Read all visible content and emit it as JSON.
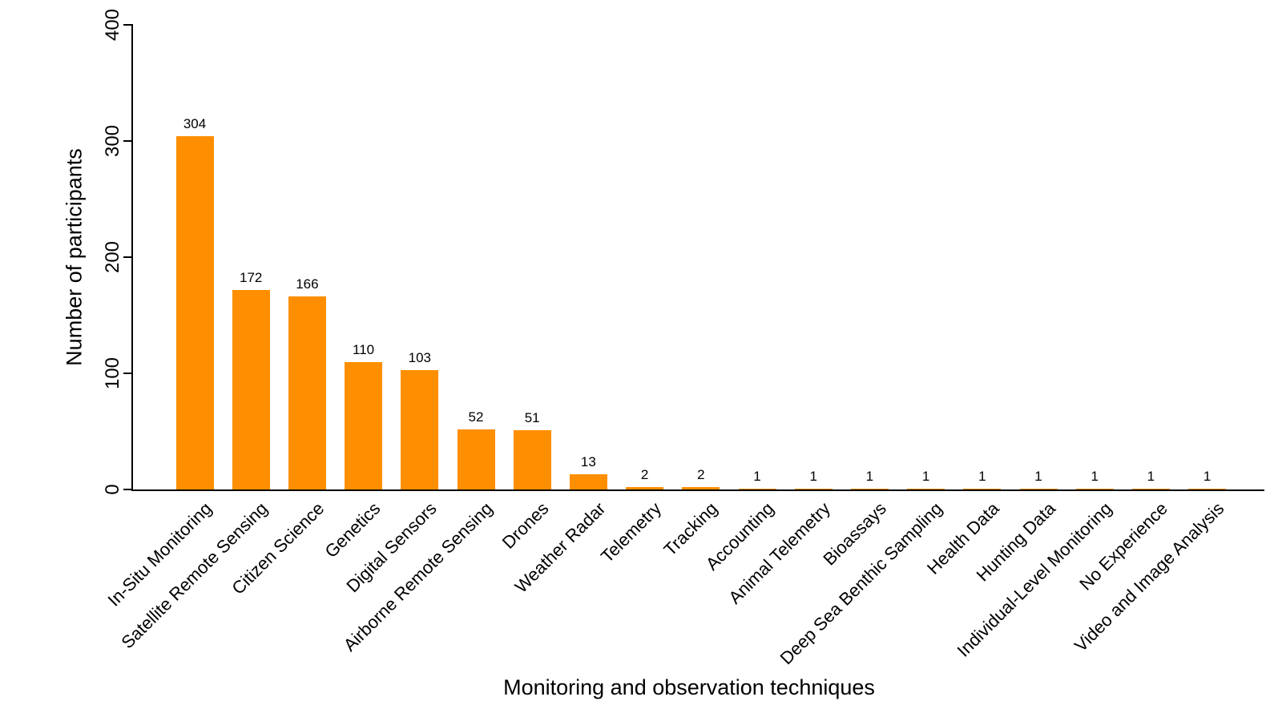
{
  "chart_data": {
    "type": "bar",
    "title": "",
    "xlabel": "Monitoring and observation techniques",
    "ylabel": "Number of participants",
    "categories": [
      "In-Situ Monitoring",
      "Satellite Remote Sensing",
      "Citizen Science",
      "Genetics",
      "Digital Sensors",
      "Airborne Remote Sensing",
      "Drones",
      "Weather Radar",
      "Telemetry",
      "Tracking",
      "Accounting",
      "Animal Telemetry",
      "Bioassays",
      "Deep Sea Benthic Sampling",
      "Health Data",
      "Hunting Data",
      "Individual-Level Monitoring",
      "No Experience",
      "Video and Image Analysis"
    ],
    "values": [
      304,
      172,
      166,
      110,
      103,
      52,
      51,
      13,
      2,
      2,
      1,
      1,
      1,
      1,
      1,
      1,
      1,
      1,
      1
    ],
    "value_labels": [
      "304",
      "172",
      "166",
      "110",
      "103",
      "52",
      "51",
      "13",
      "2",
      "2",
      "1",
      "1",
      "1",
      "1",
      "1",
      "1",
      "1",
      "1",
      "1"
    ],
    "y_ticks": [
      0,
      100,
      200,
      300,
      400
    ],
    "ylim": [
      0,
      400
    ],
    "bar_color": "#FF8F00",
    "axis_color": "#000000",
    "grid": false,
    "legend": null
  }
}
